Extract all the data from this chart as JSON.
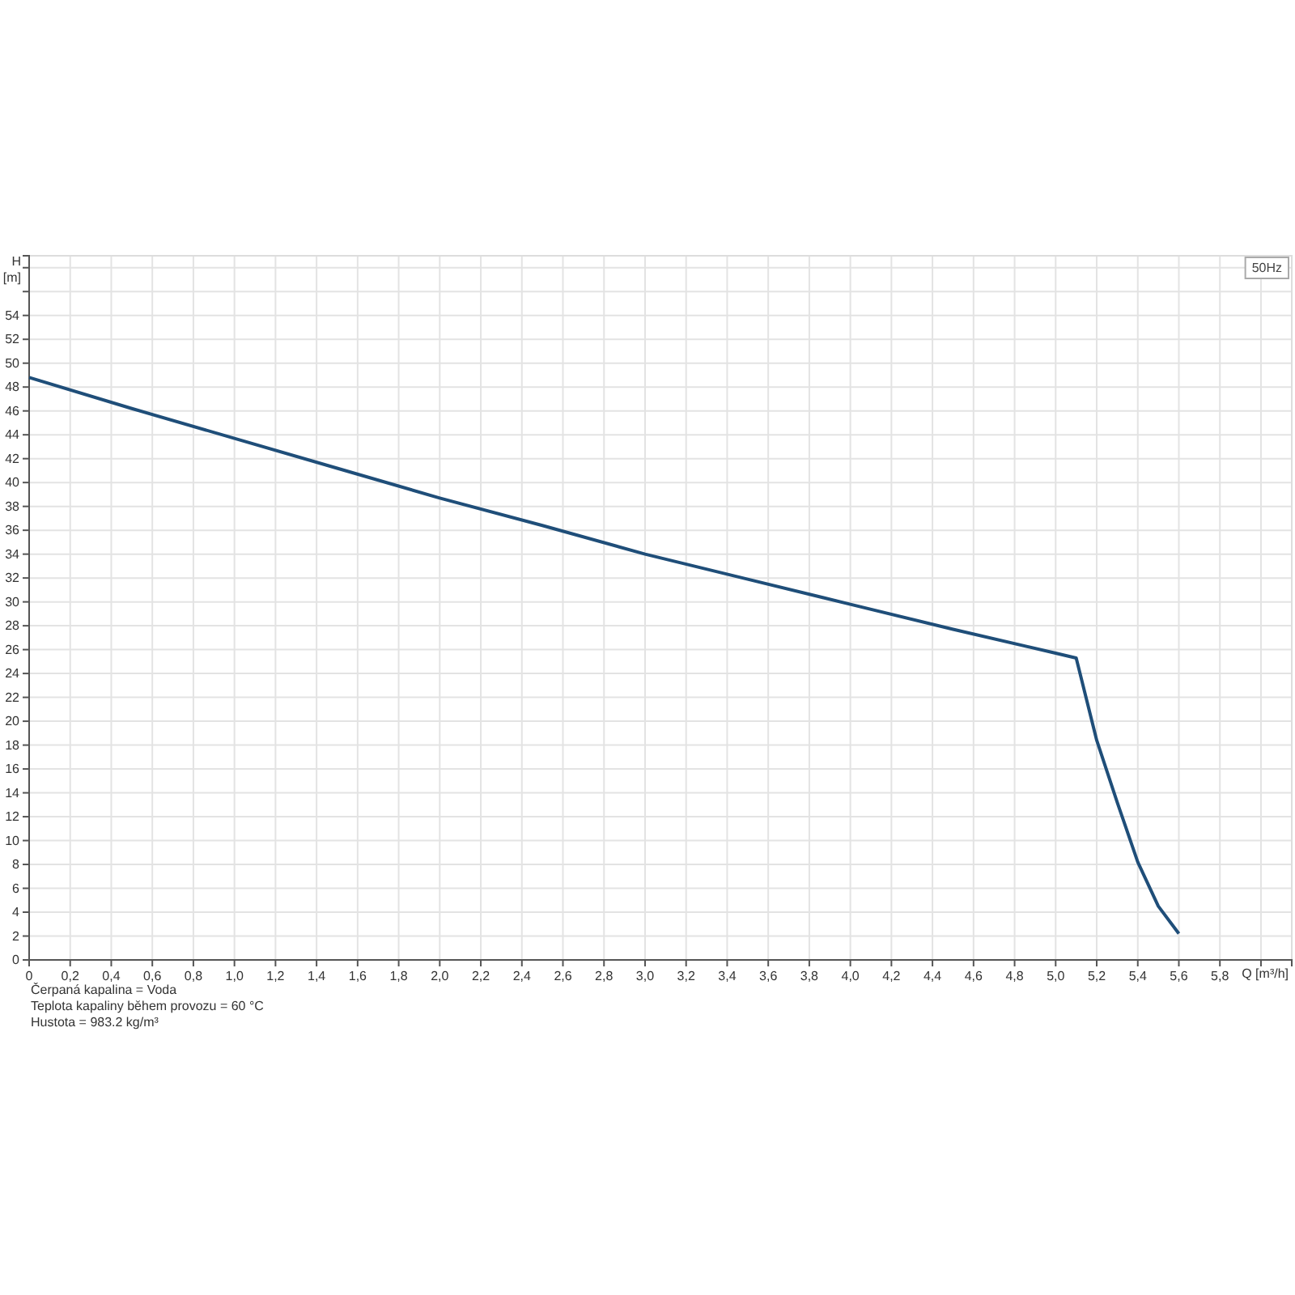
{
  "chart_data": {
    "type": "line",
    "xlabel": "Q [m³/h]",
    "ylabel": "H [m]",
    "x": [
      0,
      0.5,
      1.0,
      1.5,
      2.0,
      2.5,
      3.0,
      3.5,
      4.0,
      4.5,
      5.0,
      5.1,
      5.2,
      5.3,
      5.4,
      5.5,
      5.6
    ],
    "series": [
      {
        "color": "#1f4e79",
        "values": [
          48.8,
          46.2,
          43.7,
          41.2,
          38.7,
          36.4,
          34.0,
          31.9,
          29.8,
          27.7,
          25.7,
          25.3,
          18.4,
          13.2,
          8.2,
          4.5,
          2.2
        ]
      }
    ],
    "xlim": [
      0,
      6.15
    ],
    "ylim": [
      0,
      59
    ],
    "xticks": [
      0,
      {
        "value": 0.2,
        "label": "0,2"
      },
      {
        "value": 0.4,
        "label": "0,4"
      },
      {
        "value": 0.6,
        "label": "0,6"
      },
      {
        "value": 0.8,
        "label": "0,8"
      },
      {
        "value": 1.0,
        "label": "1,0"
      },
      {
        "value": 1.2,
        "label": "1,2"
      },
      {
        "value": 1.4,
        "label": "1,4"
      },
      {
        "value": 1.6,
        "label": "1,6"
      },
      {
        "value": 1.8,
        "label": "1,8"
      },
      {
        "value": 2.0,
        "label": "2,0"
      },
      {
        "value": 2.2,
        "label": "2,2"
      },
      {
        "value": 2.4,
        "label": "2,4"
      },
      {
        "value": 2.6,
        "label": "2,6"
      },
      {
        "value": 2.8,
        "label": "2,8"
      },
      {
        "value": 3.0,
        "label": "3,0"
      },
      {
        "value": 3.2,
        "label": "3,2"
      },
      {
        "value": 3.4,
        "label": "3,4"
      },
      {
        "value": 3.6,
        "label": "3,6"
      },
      {
        "value": 3.8,
        "label": "3,8"
      },
      {
        "value": 4.0,
        "label": "4,0"
      },
      {
        "value": 4.2,
        "label": "4,2"
      },
      {
        "value": 4.4,
        "label": "4,4"
      },
      {
        "value": 4.6,
        "label": "4,6"
      },
      {
        "value": 4.8,
        "label": "4,8"
      },
      {
        "value": 5.0,
        "label": "5,0"
      },
      {
        "value": 5.2,
        "label": "5,2"
      },
      {
        "value": 5.4,
        "label": "5,4"
      },
      {
        "value": 5.6,
        "label": "5,6"
      },
      {
        "value": 5.8,
        "label": "5,8"
      },
      {
        "value": 6.0,
        "label": null
      }
    ],
    "yticks": [
      0,
      2,
      4,
      6,
      8,
      10,
      12,
      14,
      16,
      18,
      20,
      22,
      24,
      26,
      28,
      30,
      32,
      34,
      36,
      38,
      40,
      42,
      44,
      46,
      48,
      50,
      52,
      54,
      {
        "value": 56,
        "label": null
      },
      {
        "value": 58,
        "label": null
      }
    ],
    "grid": true,
    "marker": "none",
    "line_style": "solid",
    "annotations": [
      "50Hz",
      "Čerpaná kapalina = Voda",
      "Teplota kapaliny během provozu = 60 °C",
      "Hustota = 983.2 kg/m³"
    ]
  }
}
